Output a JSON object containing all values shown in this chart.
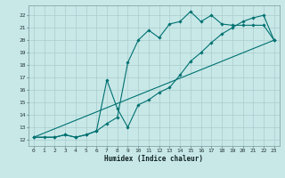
{
  "xlabel": "Humidex (Indice chaleur)",
  "bg_color": "#c8e8e8",
  "grid_color": "#aacccc",
  "line_color": "#007070",
  "xlim": [
    -0.5,
    23.5
  ],
  "ylim": [
    11.5,
    22.8
  ],
  "xticks": [
    0,
    1,
    2,
    3,
    4,
    5,
    6,
    7,
    8,
    9,
    10,
    11,
    12,
    13,
    14,
    15,
    16,
    17,
    18,
    19,
    20,
    21,
    22,
    23
  ],
  "yticks": [
    12,
    13,
    14,
    15,
    16,
    17,
    18,
    19,
    20,
    21,
    22
  ],
  "line1_x": [
    0,
    1,
    2,
    3,
    4,
    5,
    6,
    7,
    8,
    9,
    10,
    11,
    12,
    13,
    14,
    15,
    16,
    17,
    18,
    19,
    20,
    21,
    22,
    23
  ],
  "line1_y": [
    12.2,
    12.2,
    12.2,
    12.4,
    12.2,
    12.4,
    12.7,
    13.3,
    13.8,
    18.2,
    20.0,
    20.8,
    20.2,
    21.3,
    21.5,
    22.3,
    21.5,
    22.0,
    21.3,
    21.2,
    21.2,
    21.2,
    21.2,
    20.0
  ],
  "line2_x": [
    0,
    2,
    3,
    4,
    5,
    6,
    7,
    8,
    9,
    10,
    11,
    12,
    13,
    14,
    15,
    16,
    17,
    18,
    19,
    20,
    21,
    22,
    23
  ],
  "line2_y": [
    12.2,
    12.2,
    12.4,
    12.2,
    12.4,
    12.7,
    16.8,
    14.5,
    13.0,
    14.8,
    15.2,
    15.8,
    16.2,
    17.2,
    18.3,
    19.0,
    19.8,
    20.5,
    21.0,
    21.5,
    21.8,
    22.0,
    20.0
  ],
  "line3_x": [
    0,
    23
  ],
  "line3_y": [
    12.2,
    20.0
  ]
}
